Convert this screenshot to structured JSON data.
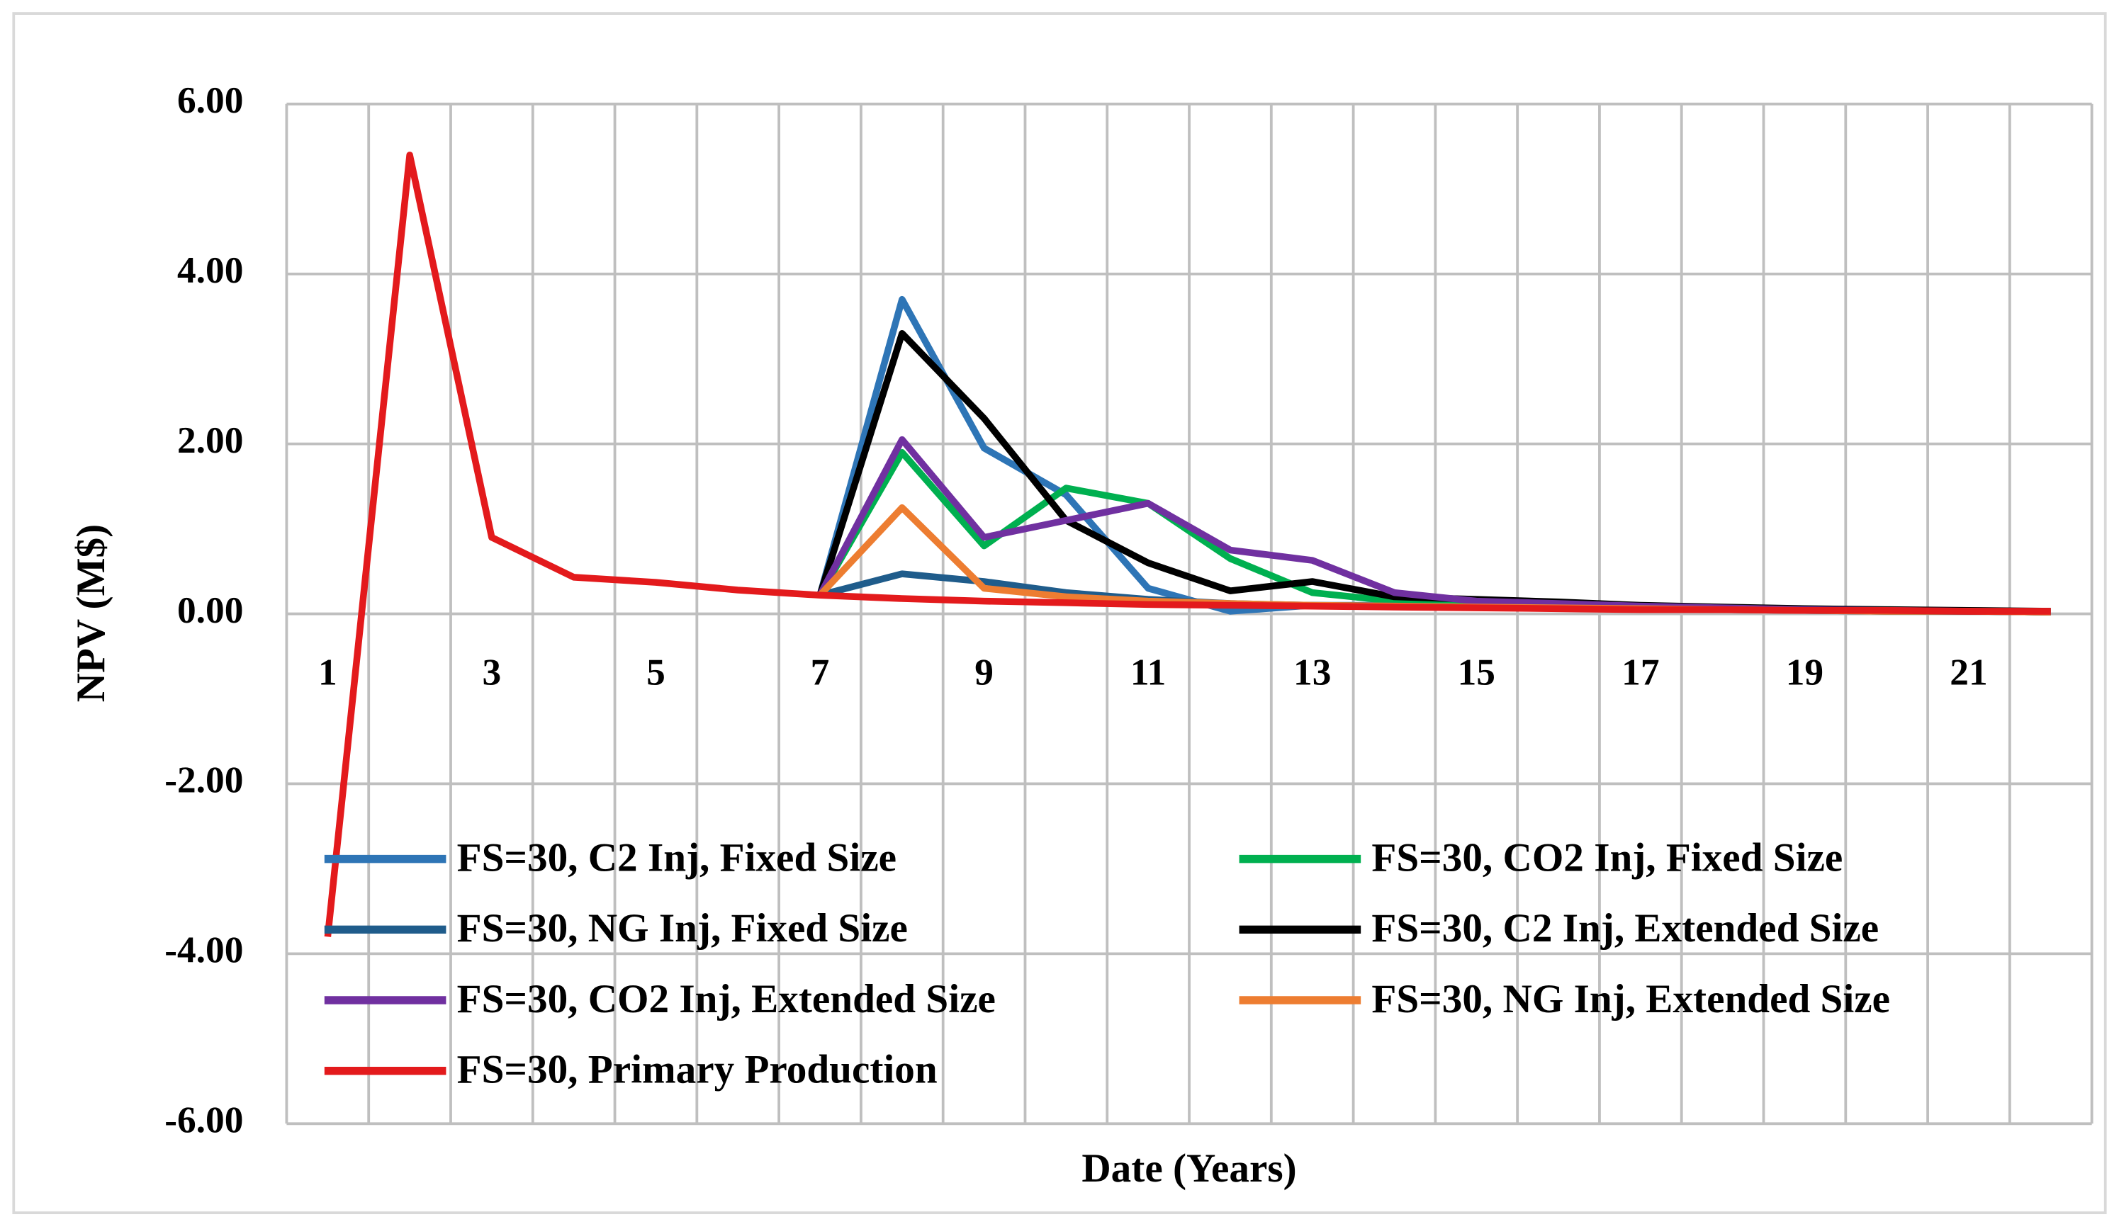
{
  "chart_data": {
    "type": "line",
    "x_label": "Date (Years)",
    "y_label": "NPV (M$)",
    "categories": [
      1,
      null,
      3,
      null,
      5,
      null,
      7,
      null,
      9,
      null,
      11,
      null,
      13,
      null,
      15,
      null,
      17,
      null,
      19,
      null,
      21,
      null
    ],
    "ylim": [
      -6,
      6
    ],
    "yticks": [
      {
        "value": -6,
        "label": "-6.00"
      },
      {
        "value": -4,
        "label": "-4.00"
      },
      {
        "value": -2,
        "label": "-2.00"
      },
      {
        "value": 0,
        "label": "0.00"
      },
      {
        "value": 2,
        "label": "2.00"
      },
      {
        "value": 4,
        "label": "4.00"
      },
      {
        "value": 6,
        "label": "6.00"
      }
    ],
    "grid": true,
    "legend": "lower left",
    "series": [
      {
        "name": "FS=30, C2 Inj, Fixed Size",
        "color": "#2e75b6",
        "values": [
          null,
          null,
          null,
          null,
          null,
          null,
          0.22,
          3.7,
          1.95,
          1.4,
          0.3,
          0.03,
          0.1,
          0.1,
          0.08,
          0.07,
          0.06,
          0.05,
          0.04,
          0.03,
          0.03,
          0.02
        ]
      },
      {
        "name": "FS=30, CO2 Inj, Fixed Size",
        "color": "#00b050",
        "values": [
          null,
          null,
          null,
          null,
          null,
          null,
          0.22,
          1.9,
          0.8,
          1.48,
          1.3,
          0.65,
          0.25,
          0.15,
          0.12,
          0.1,
          0.08,
          0.06,
          0.05,
          0.04,
          0.03,
          0.02
        ]
      },
      {
        "name": "FS=30, NG Inj, Fixed Size",
        "color": "#1f5c8b",
        "values": [
          null,
          null,
          null,
          null,
          null,
          null,
          0.22,
          0.47,
          0.38,
          0.25,
          0.17,
          0.12,
          0.1,
          0.09,
          0.08,
          0.07,
          0.06,
          0.05,
          0.04,
          0.03,
          0.03,
          0.02
        ]
      },
      {
        "name": "FS=30, C2 Inj, Extended Size",
        "color": "#000000",
        "values": [
          null,
          null,
          null,
          null,
          null,
          null,
          0.22,
          3.3,
          2.3,
          1.1,
          0.6,
          0.27,
          0.38,
          0.2,
          0.17,
          0.14,
          0.1,
          0.08,
          0.06,
          0.05,
          0.04,
          0.03
        ]
      },
      {
        "name": "FS=30, CO2 Inj, Extended Size",
        "color": "#7030a0",
        "values": [
          null,
          null,
          null,
          null,
          null,
          null,
          0.22,
          2.05,
          0.9,
          1.1,
          1.3,
          0.75,
          0.63,
          0.25,
          0.15,
          0.12,
          0.09,
          0.07,
          0.05,
          0.04,
          0.03,
          0.02
        ]
      },
      {
        "name": "FS=30, NG Inj, Extended Size",
        "color": "#ed7d31",
        "values": [
          null,
          null,
          null,
          null,
          null,
          null,
          0.22,
          1.25,
          0.3,
          0.2,
          0.15,
          0.12,
          0.1,
          0.09,
          0.08,
          0.07,
          0.06,
          0.05,
          0.04,
          0.03,
          0.03,
          0.02
        ]
      },
      {
        "name": "FS=30, Primary Production",
        "color": "#e31a1c",
        "values": [
          -3.8,
          5.4,
          0.9,
          0.43,
          0.37,
          0.28,
          0.22,
          0.18,
          0.15,
          0.13,
          0.11,
          0.1,
          0.09,
          0.08,
          0.07,
          0.06,
          0.05,
          0.05,
          0.04,
          0.04,
          0.03,
          0.03
        ]
      }
    ]
  }
}
